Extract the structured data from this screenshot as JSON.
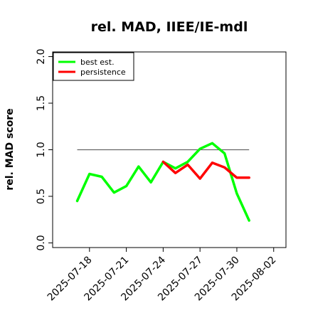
{
  "chart_data": {
    "type": "line",
    "title": "rel. MAD, IIEE/IE-mdl",
    "xlabel": "",
    "ylabel": "rel. MAD score",
    "ylim": [
      -0.05,
      2.05
    ],
    "xlim": [
      "2025-07-15",
      "2025-08-03"
    ],
    "yticks": [
      0.0,
      0.5,
      1.0,
      1.5,
      2.0
    ],
    "ytick_labels": [
      "0.0",
      "0.5",
      "1.0",
      "1.5",
      "2.0"
    ],
    "xticks": [
      "2025-07-18",
      "2025-07-21",
      "2025-07-24",
      "2025-07-27",
      "2025-07-30",
      "2025-08-02"
    ],
    "legend": {
      "position": "top-left",
      "entries": [
        {
          "label": "best est.",
          "color": "#00ff00"
        },
        {
          "label": "persistence",
          "color": "#ff0000"
        }
      ]
    },
    "reference_line": {
      "y": 1.0,
      "x_start": "2025-07-17",
      "x_end": "2025-07-31",
      "color": "#666666"
    },
    "series": [
      {
        "name": "best est.",
        "color": "#00ff00",
        "x": [
          "2025-07-17",
          "2025-07-18",
          "2025-07-19",
          "2025-07-20",
          "2025-07-21",
          "2025-07-22",
          "2025-07-23",
          "2025-07-24",
          "2025-07-25",
          "2025-07-26",
          "2025-07-27",
          "2025-07-28",
          "2025-07-29",
          "2025-07-30",
          "2025-07-31"
        ],
        "values": [
          0.45,
          0.74,
          0.71,
          0.54,
          0.61,
          0.82,
          0.65,
          0.87,
          0.8,
          0.87,
          1.01,
          1.07,
          0.96,
          0.53,
          0.24
        ]
      },
      {
        "name": "persistence",
        "color": "#ff0000",
        "x": [
          "2025-07-24",
          "2025-07-25",
          "2025-07-26",
          "2025-07-27",
          "2025-07-28",
          "2025-07-29",
          "2025-07-30",
          "2025-07-31"
        ],
        "values": [
          0.87,
          0.75,
          0.84,
          0.69,
          0.86,
          0.81,
          0.7,
          0.7
        ]
      }
    ]
  }
}
